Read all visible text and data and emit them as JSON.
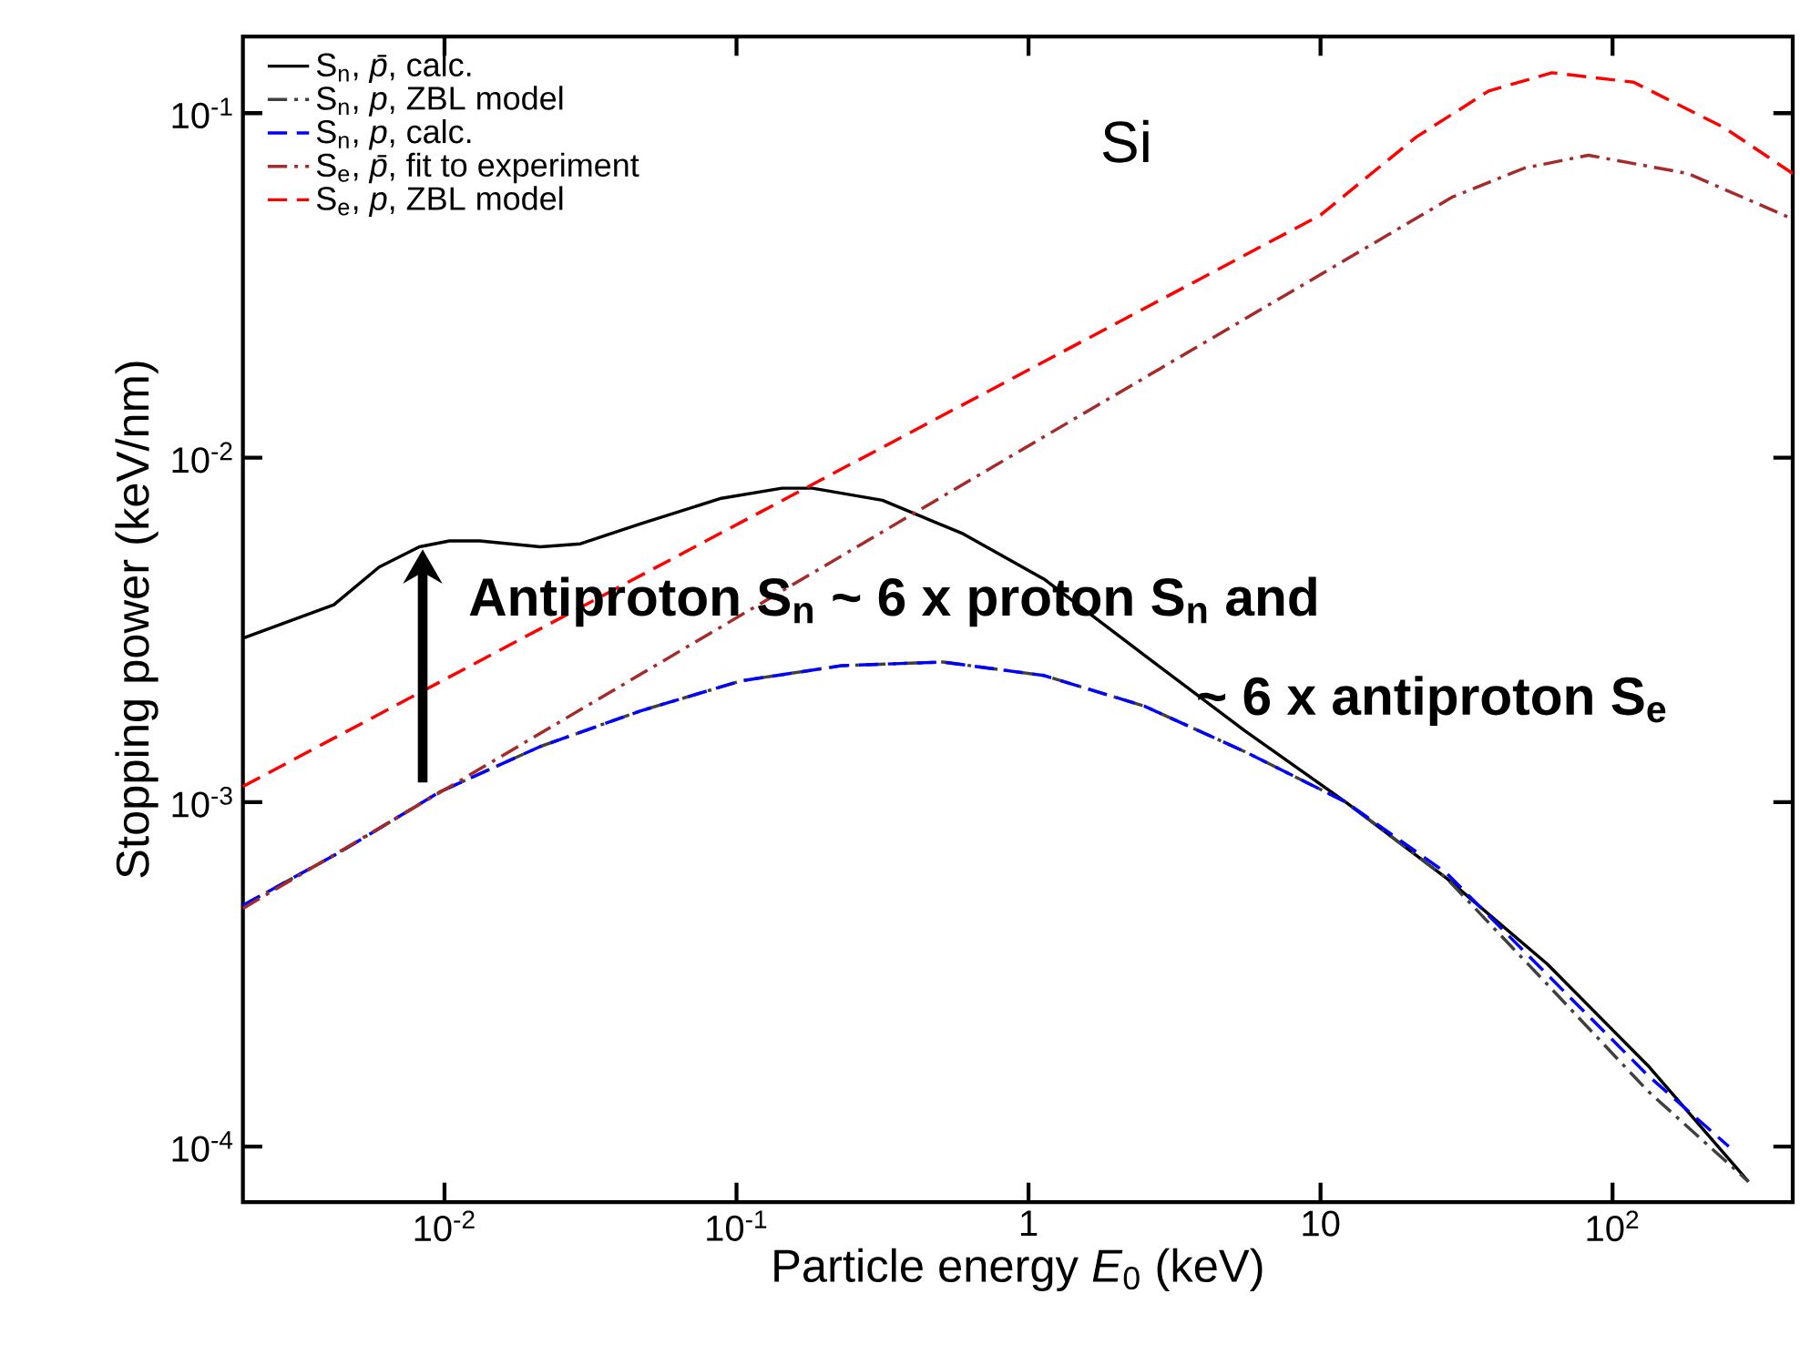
{
  "chart_data": {
    "type": "line",
    "xlabel": "Particle energy *E*$_{0}$ (keV)",
    "ylabel": "Stopping power (keV/nm)",
    "annotations": [
      "Si",
      "Antiproton S$_{n}$ ~ 6 x proton S$_{n}$ and",
      "~ 6 x antiproton S$_{e}$"
    ],
    "log": "xy",
    "xlim": [
      0.00204,
      414
    ],
    "ylim": [
      6.9e-05,
      0.167
    ],
    "xticks": [
      {
        "value": 0.01,
        "label": "10$^{-2}$"
      },
      {
        "value": 0.1,
        "label": "10$^{-1}$"
      },
      1,
      10,
      {
        "value": 100,
        "label": "10$^{2}$"
      }
    ],
    "yticks": [
      {
        "value": 0.0001,
        "label": "10$^{-4}$"
      },
      {
        "value": 0.001,
        "label": "10$^{-3}$"
      },
      {
        "value": 0.01,
        "label": "10$^{-2}$"
      },
      {
        "value": 0.1,
        "label": "10$^{-1}$"
      }
    ],
    "legend": "top left",
    "marker": "none",
    "series": [
      {
        "name": "S$_{n}$, *p̄*, calc.",
        "color": "#000000",
        "line_style": "solid",
        "x": [
          0.00204,
          0.00418,
          0.00597,
          0.0082,
          0.0104,
          0.0132,
          0.0213,
          0.0292,
          0.047,
          0.0887,
          0.143,
          0.182,
          0.316,
          0.597,
          1.13,
          2.49,
          5.51,
          12.2,
          27,
          59.7,
          132,
          292
        ],
        "values": [
          0.00299,
          0.00374,
          0.00481,
          0.00551,
          0.00573,
          0.00573,
          0.00551,
          0.00562,
          0.00643,
          0.00762,
          0.00815,
          0.00815,
          0.00752,
          0.00601,
          0.00444,
          0.00267,
          0.00161,
          0.001,
          0.000601,
          0.000339,
          0.000172,
          7.91e-05
        ]
      },
      {
        "name": "S$_{n}$, *p*, ZBL model",
        "color": "#404040",
        "line_style": "dashdot",
        "x": [
          0.00204,
          0.00435,
          0.00962,
          0.0213,
          0.047,
          0.104,
          0.23,
          0.509,
          1.13,
          2.49,
          5.51,
          12.2,
          27,
          59.7,
          132,
          292
        ],
        "values": [
          0.000501,
          0.000713,
          0.00107,
          0.00145,
          0.00184,
          0.00225,
          0.00249,
          0.00255,
          0.00233,
          0.0019,
          0.0014,
          0.001,
          0.000601,
          0.000296,
          0.000145,
          7.91e-05
        ]
      },
      {
        "name": "S$_{n}$, *p*, calc.",
        "color": "#0000ff",
        "line_style": "dashed",
        "x": [
          0.00204,
          0.00435,
          0.00962,
          0.0213,
          0.047,
          0.104,
          0.23,
          0.509,
          1.13,
          2.49,
          5.51,
          12.2,
          27,
          59.7,
          132,
          250
        ],
        "values": [
          0.000501,
          0.000713,
          0.00107,
          0.00145,
          0.00184,
          0.00225,
          0.00249,
          0.00255,
          0.00233,
          0.0019,
          0.0014,
          0.001,
          0.000622,
          0.000316,
          0.000161,
          0.0001
        ]
      },
      {
        "name": "S$_{e}$, *p̄*, fit to experiment",
        "color": "#a52a2a",
        "line_style": "dashdot",
        "x": [
          0.00204,
          1.13,
          10,
          28.3,
          50,
          82.6,
          181,
          414
        ],
        "values": [
          0.000491,
          0.0115,
          0.034,
          0.0571,
          0.0693,
          0.0755,
          0.0668,
          0.0493
        ]
      },
      {
        "name": "S$_{e}$, *p*, ZBL model",
        "color": "#ff0000",
        "line_style": "dashed",
        "x": [
          0.00204,
          10,
          21.3,
          37.7,
          62,
          118,
          241,
          414
        ],
        "values": [
          0.00111,
          0.0506,
          0.0853,
          0.116,
          0.131,
          0.123,
          0.0908,
          0.0668
        ]
      }
    ]
  }
}
